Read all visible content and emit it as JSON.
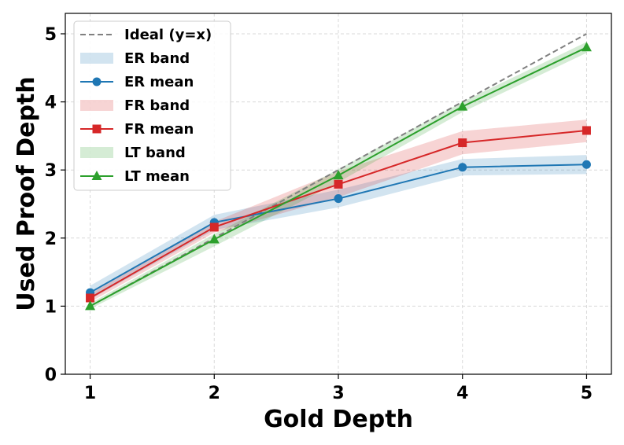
{
  "chart_data": {
    "type": "line",
    "xlabel": "Gold Depth",
    "ylabel": "Used Proof Depth",
    "x": [
      1,
      2,
      3,
      4,
      5
    ],
    "xlim": [
      0.8,
      5.2
    ],
    "ylim": [
      0,
      5.3
    ],
    "xticks": [
      "1",
      "2",
      "3",
      "4",
      "5"
    ],
    "yticks": [
      "0",
      "1",
      "2",
      "3",
      "4",
      "5"
    ],
    "grid": true,
    "legend_position": "top-left",
    "ideal": {
      "name": "Ideal (y=x)",
      "color": "#808080",
      "values": [
        1,
        2,
        3,
        4,
        5
      ]
    },
    "series": [
      {
        "key": "er",
        "band_name": "ER band",
        "mean_name": "ER mean",
        "color": "#1f77b4",
        "marker": "circle",
        "values": [
          1.2,
          2.23,
          2.58,
          3.04,
          3.08
        ],
        "band_low": [
          1.1,
          2.12,
          2.45,
          2.92,
          2.94
        ],
        "band_high": [
          1.3,
          2.34,
          2.71,
          3.16,
          3.22
        ]
      },
      {
        "key": "fr",
        "band_name": "FR band",
        "mean_name": "FR mean",
        "color": "#d62728",
        "marker": "square",
        "values": [
          1.12,
          2.16,
          2.79,
          3.4,
          3.58
        ],
        "band_low": [
          1.06,
          2.08,
          2.6,
          3.23,
          3.41
        ],
        "band_high": [
          1.18,
          2.24,
          2.98,
          3.57,
          3.74
        ]
      },
      {
        "key": "lt",
        "band_name": "LT band",
        "mean_name": "LT mean",
        "color": "#2ca02c",
        "marker": "triangle",
        "values": [
          1.0,
          1.98,
          2.92,
          3.93,
          4.8
        ],
        "band_low": [
          0.96,
          1.88,
          2.82,
          3.85,
          4.72
        ],
        "band_high": [
          1.04,
          2.06,
          3.01,
          4.0,
          4.88
        ]
      }
    ]
  }
}
